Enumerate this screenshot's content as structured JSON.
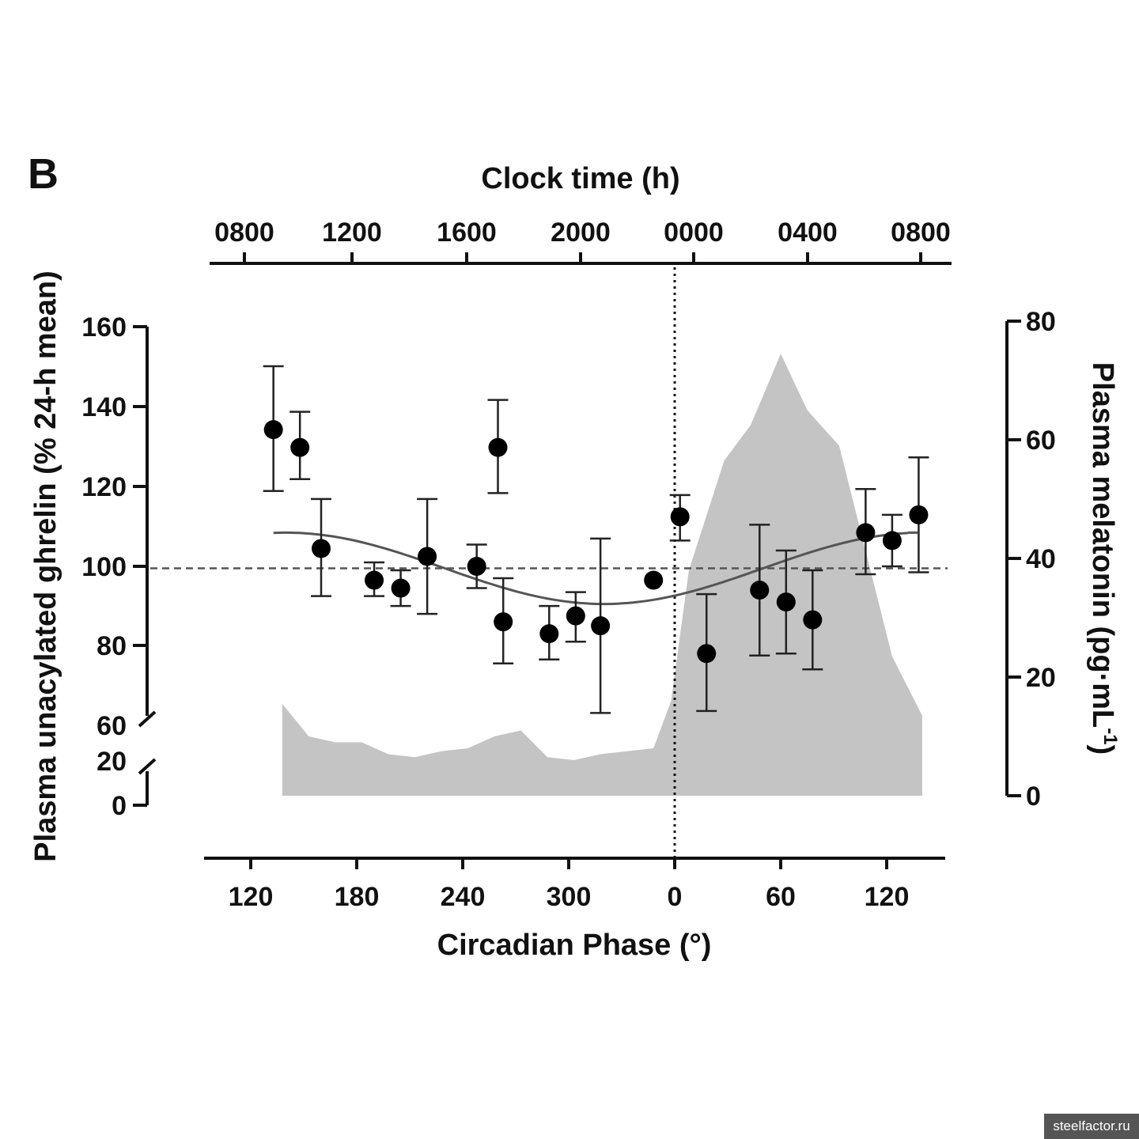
{
  "chart_data": {
    "type": "scatter",
    "panel_label": "B",
    "top_axis": {
      "title": "Clock time (h)",
      "tick_labels": [
        "0800",
        "1200",
        "1600",
        "2000",
        "0000",
        "0400",
        "0800"
      ]
    },
    "bottom_axis": {
      "title": "Circadian Phase (°)",
      "tick_labels": [
        "120",
        "180",
        "240",
        "300",
        "0",
        "60",
        "120"
      ]
    },
    "left_axis": {
      "title": "Plasma unacylated ghrelin (% 24-h mean)",
      "tick_labels": [
        "160",
        "140",
        "120",
        "100",
        "80",
        "60",
        "20",
        "0"
      ],
      "ylim": [
        60,
        160
      ],
      "broken": true
    },
    "right_axis": {
      "title": "Plasma melatonin (pg·mL",
      "title_superscript": "-1",
      "title_close": ")",
      "tick_labels": [
        "0",
        "20",
        "40",
        "60",
        "80"
      ],
      "ylim": [
        0,
        80
      ]
    },
    "ghrelin_points": [
      {
        "x": -227,
        "y": 134.5,
        "lo": 119.0,
        "hi": 150.5
      },
      {
        "x": -212,
        "y": 130.0,
        "lo": 122.0,
        "hi": 139.0
      },
      {
        "x": -200,
        "y": 104.5,
        "lo": 92.5,
        "hi": 117.0
      },
      {
        "x": -170,
        "y": 96.5,
        "lo": 92.5,
        "hi": 101.0
      },
      {
        "x": -155,
        "y": 94.5,
        "lo": 90.0,
        "hi": 99.0
      },
      {
        "x": -140,
        "y": 102.5,
        "lo": 88.0,
        "hi": 117.0
      },
      {
        "x": -112,
        "y": 100.0,
        "lo": 94.5,
        "hi": 105.5
      },
      {
        "x": -97,
        "y": 86.0,
        "lo": 75.5,
        "hi": 97.0
      },
      {
        "x": -100,
        "y": 130.0,
        "lo": 118.5,
        "hi": 142.0,
        "note": ""
      },
      {
        "x": -71,
        "y": 83.0,
        "lo": 76.5,
        "hi": 90.0
      },
      {
        "x": -56,
        "y": 87.5,
        "lo": 81.0,
        "hi": 93.5
      },
      {
        "x": -42,
        "y": 85.0,
        "lo": 63.0,
        "hi": 107.0
      },
      {
        "x": -12,
        "y": 96.5,
        "lo": null,
        "hi": null
      },
      {
        "x": 3,
        "y": 112.5,
        "lo": 106.5,
        "hi": 118.0
      },
      {
        "x": 18,
        "y": 78.0,
        "lo": 63.5,
        "hi": 93.0
      },
      {
        "x": 48,
        "y": 94.0,
        "lo": 77.5,
        "hi": 110.5
      },
      {
        "x": 63,
        "y": 91.0,
        "lo": 78.0,
        "hi": 104.0
      },
      {
        "x": 78,
        "y": 86.5,
        "lo": 74.0,
        "hi": 99.0
      },
      {
        "x": 108,
        "y": 108.5,
        "lo": 98.0,
        "hi": 119.5
      },
      {
        "x": 123,
        "y": 106.5,
        "lo": 100.0,
        "hi": 113.0
      },
      {
        "x": 138,
        "y": 113.0,
        "lo": 98.5,
        "hi": 127.5
      }
    ],
    "fitted_curve": {
      "mean": 99.5,
      "amplitude": 9.0,
      "x_start": -227,
      "x_end": 132
    },
    "mean_reference_line": 99.5,
    "dotted_vertical_x": 0,
    "melatonin_area": [
      [
        -222,
        15.5
      ],
      [
        -207,
        10
      ],
      [
        -192,
        9
      ],
      [
        -177,
        9
      ],
      [
        -162,
        7
      ],
      [
        -147,
        6.5
      ],
      [
        -132,
        7.5
      ],
      [
        -117,
        8
      ],
      [
        -102,
        10
      ],
      [
        -87,
        11
      ],
      [
        -72,
        6.5
      ],
      [
        -57,
        6
      ],
      [
        -42,
        7
      ],
      [
        -27,
        7.5
      ],
      [
        -12,
        8
      ],
      [
        -2,
        16
      ],
      [
        8,
        38
      ],
      [
        28,
        56.5
      ],
      [
        43,
        62.5
      ],
      [
        60,
        74.5
      ],
      [
        75,
        65
      ],
      [
        93,
        59
      ],
      [
        123,
        23.5
      ],
      [
        140,
        13.5
      ]
    ],
    "grid": false
  }
}
